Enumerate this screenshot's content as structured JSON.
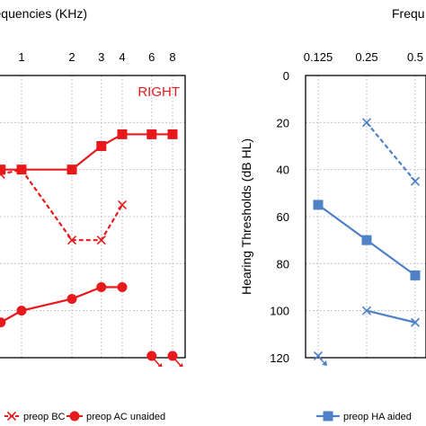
{
  "chart_data": [
    {
      "type": "line",
      "panel": "right-ear",
      "x_axis_title": "Frequencies (KHz)",
      "x_ticks": [
        "1",
        "2",
        "3",
        "4",
        "6",
        "8"
      ],
      "side_label": "RIGHT",
      "ylim": [
        120,
        0
      ],
      "series": [
        {
          "name": "preop AC unaided",
          "style": "solid",
          "marker": "square",
          "color": "#e8191c",
          "points": [
            [
              0.75,
              40
            ],
            [
              1,
              40
            ],
            [
              2,
              40
            ],
            [
              3,
              30
            ],
            [
              4,
              25
            ],
            [
              6,
              25
            ],
            [
              8,
              25
            ]
          ]
        },
        {
          "name": "preop BC",
          "style": "dashed",
          "marker": "x",
          "color": "#e8191c",
          "points": [
            [
              0.75,
              42
            ],
            [
              1,
              40
            ],
            [
              2,
              70
            ],
            [
              3,
              70
            ],
            [
              4,
              55
            ]
          ]
        },
        {
          "name": "preop AC unaided",
          "style": "solid",
          "marker": "circle",
          "color": "#e8191c",
          "points": [
            [
              0.75,
              105
            ],
            [
              1,
              100
            ],
            [
              2,
              95
            ],
            [
              3,
              90
            ],
            [
              4,
              90
            ]
          ]
        },
        {
          "name": "",
          "style": "none",
          "marker": "circle-arrow",
          "color": "#e8191c",
          "points": [
            [
              6,
              120
            ],
            [
              8,
              120
            ]
          ]
        }
      ],
      "legend": [
        {
          "label": "preop BC",
          "style": "dashed",
          "marker": "x"
        },
        {
          "label": "preop AC unaided",
          "style": "solid",
          "marker": "circle"
        }
      ]
    },
    {
      "type": "line",
      "panel": "left-ear",
      "x_axis_title": "Frequ",
      "x_ticks": [
        "0.125",
        "0.25",
        "0.5"
      ],
      "ylabel": "Hearing Thresholds (dB HL)",
      "y_ticks": [
        "0",
        "20",
        "40",
        "60",
        "80",
        "100",
        "120"
      ],
      "ylim": [
        120,
        0
      ],
      "series": [
        {
          "name": "preop HA aided",
          "style": "solid",
          "marker": "square",
          "color": "#4f81c7",
          "points": [
            [
              0.125,
              55
            ],
            [
              0.25,
              70
            ],
            [
              0.5,
              85
            ]
          ]
        },
        {
          "name": "",
          "style": "dashed",
          "marker": "x",
          "color": "#4f81c7",
          "points": [
            [
              0.25,
              20
            ],
            [
              0.5,
              45
            ]
          ]
        },
        {
          "name": "",
          "style": "solid",
          "marker": "x",
          "color": "#4f81c7",
          "points": [
            [
              0.25,
              100
            ],
            [
              0.5,
              105
            ]
          ]
        },
        {
          "name": "",
          "style": "none",
          "marker": "x-arrow",
          "color": "#4f81c7",
          "points": [
            [
              0.125,
              120
            ]
          ]
        }
      ],
      "legend": [
        {
          "label": "preop HA aided",
          "style": "solid",
          "marker": "square"
        }
      ]
    }
  ]
}
